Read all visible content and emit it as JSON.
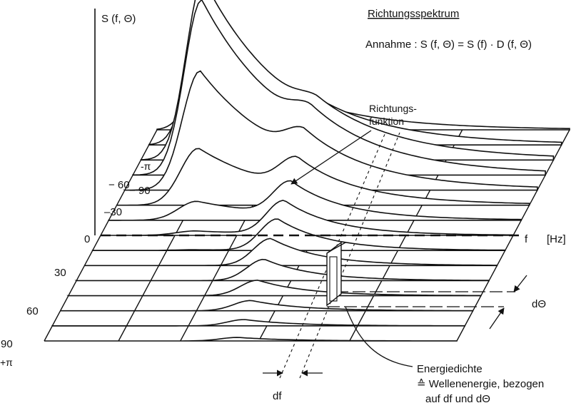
{
  "title": "Richtungsspektrum",
  "assumption": "Annahme : S (f, Θ) = S (f) · D (f, Θ)",
  "axis": {
    "z_label": "S (f, Θ)",
    "f_label": "f",
    "f_unit": "[Hz]",
    "theta_ticks": [
      "− 90",
      "− 60",
      "–30",
      "0",
      "30",
      "60",
      "90"
    ],
    "minus_pi": "-π",
    "plus_pi": "+π"
  },
  "annotations": {
    "richtung_1": "Richtungs-",
    "richtung_2": "funktion",
    "df": "df",
    "dtheta": "dΘ",
    "energy_1": "Energiedichte",
    "energy_2": "≙ Wellenenergie, bezogen",
    "energy_3": "auf df und dΘ"
  }
}
